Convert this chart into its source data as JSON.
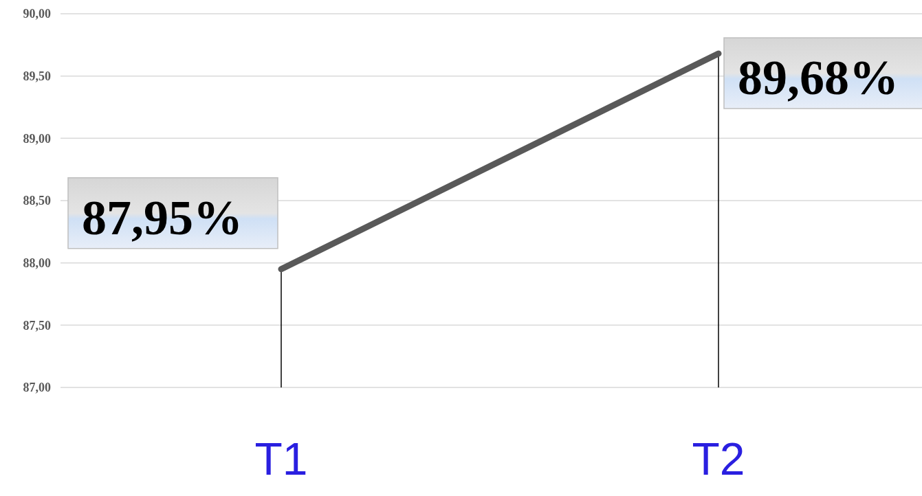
{
  "chart_data": {
    "type": "line",
    "categories": [
      "T1",
      "T2"
    ],
    "series": [
      {
        "color": "#595959",
        "values": [
          87.95,
          89.68
        ],
        "errors": [
          [
            87,
            87.95
          ],
          [
            87,
            89.68
          ]
        ],
        "value_labels": [
          "87,95%",
          "89,68%"
        ]
      }
    ],
    "ylim": [
      87,
      90
    ],
    "yticks": [
      {
        "value": 87,
        "label": "87,00"
      },
      {
        "value": 87.5,
        "label": "87,50"
      },
      {
        "value": 88,
        "label": "88,00"
      },
      {
        "value": 88.5,
        "label": "88,50"
      },
      {
        "value": 89,
        "label": "89,00"
      },
      {
        "value": 89.5,
        "label": "89,50"
      },
      {
        "value": 90,
        "label": "90,00"
      }
    ],
    "grid": "y",
    "marker": "none",
    "line_style": "solid"
  }
}
